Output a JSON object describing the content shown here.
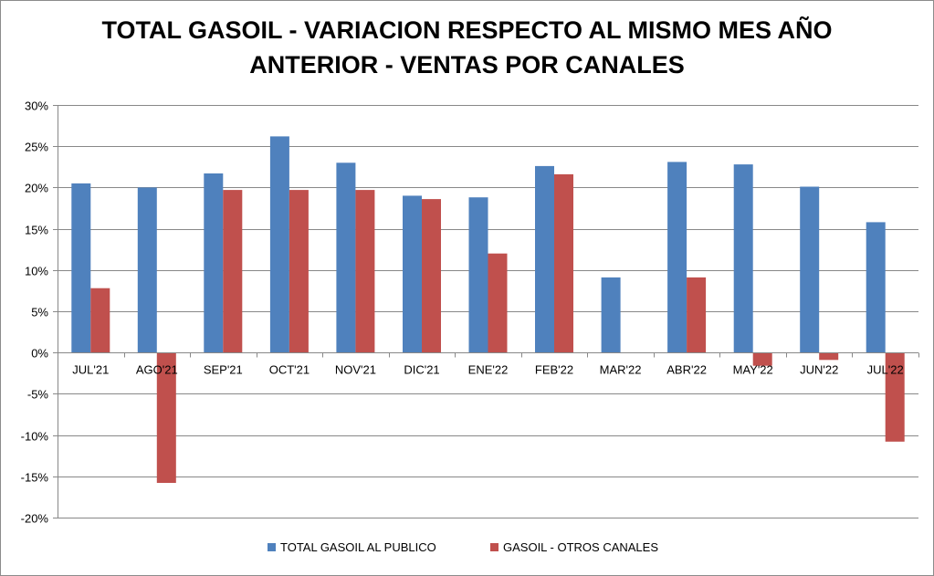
{
  "chart_data": {
    "type": "bar",
    "title_lines": [
      "TOTAL GASOIL - VARIACION RESPECTO AL MISMO MES AÑO",
      "ANTERIOR - VENTAS POR CANALES"
    ],
    "categories": [
      "JUL'21",
      "AGO'21",
      "SEP'21",
      "OCT'21",
      "NOV'21",
      "DIC'21",
      "ENE'22",
      "FEB'22",
      "MAR'22",
      "ABR'22",
      "MAY'22",
      "JUN'22",
      "JUL'22"
    ],
    "series": [
      {
        "name": "TOTAL GASOIL AL PUBLICO",
        "color": "#4f81bd",
        "values": [
          20.5,
          20.0,
          21.7,
          26.2,
          23.0,
          19.0,
          18.8,
          22.6,
          9.1,
          23.1,
          22.8,
          20.1,
          15.8
        ]
      },
      {
        "name": "GASOIL - OTROS CANALES",
        "color": "#c0504d",
        "values": [
          7.8,
          -15.8,
          19.7,
          19.7,
          19.7,
          18.6,
          12.0,
          21.6,
          0.0,
          9.1,
          -1.6,
          -0.9,
          -10.8
        ]
      }
    ],
    "ylim": [
      -20,
      30
    ],
    "yticks": [
      -20,
      -15,
      -10,
      -5,
      0,
      5,
      10,
      15,
      20,
      25,
      30
    ],
    "ytick_labels": [
      "-20%",
      "-15%",
      "-10%",
      "-5%",
      "0%",
      "5%",
      "10%",
      "15%",
      "20%",
      "25%",
      "30%"
    ],
    "grid": true,
    "legend_position": "bottom",
    "xlabel": "",
    "ylabel": ""
  }
}
